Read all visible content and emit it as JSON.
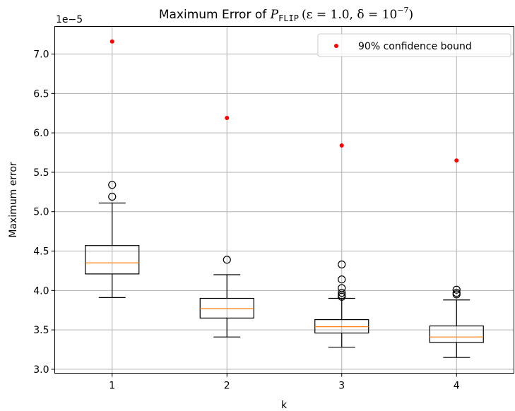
{
  "chart_data": {
    "type": "box",
    "title": {
      "prefix": "Maximum Error of ",
      "script_symbol": "P",
      "subscript": "FLIP",
      "params": "(ε = 1.0, δ = 10",
      "exponent": "−7",
      "close": ")"
    },
    "xlabel": "k",
    "ylabel": "Maximum error",
    "y_offset_text": "1e−5",
    "categories": [
      "1",
      "2",
      "3",
      "4"
    ],
    "y_ticks": [
      3.0,
      3.5,
      4.0,
      4.5,
      5.0,
      5.5,
      6.0,
      6.5,
      7.0
    ],
    "y_tick_labels": [
      "3.0",
      "3.5",
      "4.0",
      "4.5",
      "5.0",
      "5.5",
      "6.0",
      "6.5",
      "7.0"
    ],
    "ylim": [
      2.95,
      7.35
    ],
    "grid": true,
    "legend_position": "upper right",
    "boxes": [
      {
        "whisker_low": 3.91,
        "q1": 4.21,
        "median": 4.35,
        "q3": 4.57,
        "whisker_high": 5.11,
        "outliers": [
          5.19,
          5.34
        ]
      },
      {
        "whisker_low": 3.41,
        "q1": 3.65,
        "median": 3.77,
        "q3": 3.9,
        "whisker_high": 4.2,
        "outliers": [
          4.39
        ]
      },
      {
        "whisker_low": 3.28,
        "q1": 3.46,
        "median": 3.54,
        "q3": 3.63,
        "whisker_high": 3.9,
        "outliers": [
          3.92,
          3.94,
          3.97,
          4.03,
          4.14,
          4.33
        ]
      },
      {
        "whisker_low": 3.15,
        "q1": 3.34,
        "median": 3.41,
        "q3": 3.55,
        "whisker_high": 3.88,
        "outliers": [
          3.95,
          3.97,
          4.01
        ]
      }
    ],
    "series": [
      {
        "name": "90% confidence bound",
        "values": [
          7.16,
          6.19,
          5.84,
          5.65
        ],
        "color": "#ff0000",
        "marker": "dot"
      }
    ],
    "colors": {
      "box": "#000000",
      "median": "#ff7f0e",
      "grid": "#b0b0b0"
    }
  }
}
